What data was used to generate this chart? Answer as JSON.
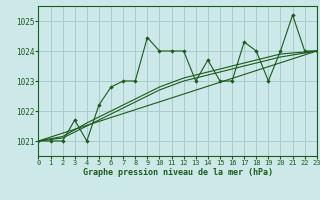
{
  "title": "Graphe pression niveau de la mer (hPa)",
  "background_color": "#cce8e8",
  "plot_bg_color": "#cce8e8",
  "grid_color": "#aacccc",
  "line_color": "#1a5c1a",
  "xlim": [
    0,
    23
  ],
  "ylim": [
    1020.5,
    1025.5
  ],
  "yticks": [
    1021,
    1022,
    1023,
    1024,
    1025
  ],
  "xticks": [
    0,
    1,
    2,
    3,
    4,
    5,
    6,
    7,
    8,
    9,
    10,
    11,
    12,
    13,
    14,
    15,
    16,
    17,
    18,
    19,
    20,
    21,
    22,
    23
  ],
  "series_main": [
    [
      0,
      1021.0
    ],
    [
      1,
      1021.0
    ],
    [
      2,
      1021.0
    ],
    [
      3,
      1021.7
    ],
    [
      4,
      1021.0
    ],
    [
      5,
      1022.2
    ],
    [
      6,
      1022.8
    ],
    [
      7,
      1023.0
    ],
    [
      8,
      1023.0
    ],
    [
      9,
      1024.45
    ],
    [
      10,
      1024.0
    ],
    [
      11,
      1024.0
    ],
    [
      12,
      1024.0
    ],
    [
      13,
      1023.0
    ],
    [
      14,
      1023.7
    ],
    [
      15,
      1023.0
    ],
    [
      16,
      1023.0
    ],
    [
      17,
      1024.3
    ],
    [
      18,
      1024.0
    ],
    [
      19,
      1023.0
    ],
    [
      20,
      1024.0
    ],
    [
      21,
      1025.2
    ],
    [
      22,
      1024.0
    ],
    [
      23,
      1024.0
    ]
  ],
  "series_trend1": [
    [
      0,
      1021.0
    ],
    [
      23,
      1024.0
    ]
  ],
  "series_smooth1": [
    [
      0,
      1021.0
    ],
    [
      2,
      1021.1
    ],
    [
      4,
      1021.5
    ],
    [
      6,
      1021.9
    ],
    [
      8,
      1022.3
    ],
    [
      10,
      1022.7
    ],
    [
      12,
      1023.0
    ],
    [
      14,
      1023.2
    ],
    [
      16,
      1023.4
    ],
    [
      18,
      1023.6
    ],
    [
      20,
      1023.8
    ],
    [
      23,
      1024.0
    ]
  ],
  "series_smooth2": [
    [
      0,
      1021.0
    ],
    [
      2,
      1021.15
    ],
    [
      4,
      1021.6
    ],
    [
      6,
      1022.0
    ],
    [
      8,
      1022.4
    ],
    [
      10,
      1022.8
    ],
    [
      12,
      1023.1
    ],
    [
      14,
      1023.3
    ],
    [
      16,
      1023.5
    ],
    [
      18,
      1023.7
    ],
    [
      20,
      1023.9
    ],
    [
      23,
      1024.0
    ]
  ]
}
